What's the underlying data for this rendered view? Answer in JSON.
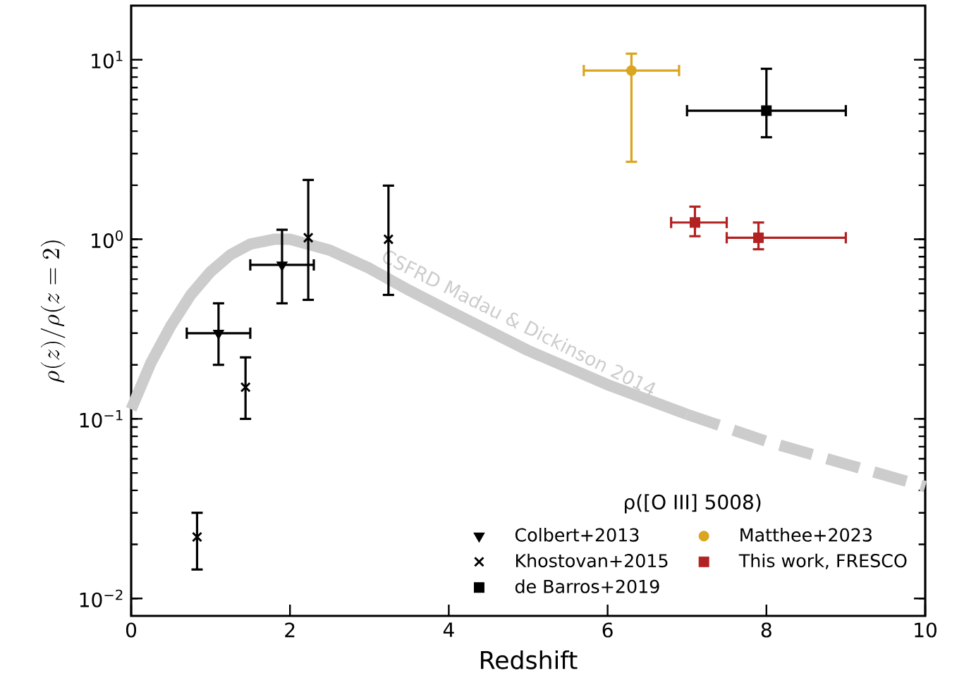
{
  "chart_data": {
    "type": "scatter",
    "xlabel": "Redshift",
    "ylabel": "\\rho(z)/\\rho(z=2)",
    "xlim": [
      0,
      10
    ],
    "ylim": [
      0.008,
      20
    ],
    "log": "y",
    "xticks": [
      0,
      2,
      4,
      6,
      8,
      10
    ],
    "yticks": [
      {
        "value": 0.01,
        "label": "10$^{−2}$"
      },
      {
        "value": 0.1,
        "label": "10$^{−1}$"
      },
      {
        "value": 1,
        "label": "10$^{0}$"
      },
      {
        "value": 10,
        "label": "10$^{1}$"
      }
    ],
    "legend": "bottom right",
    "legend_title": "ρ([O III] 5008)",
    "series": [
      {
        "name": "Colbert+2013",
        "marker": "triangle",
        "color": "#000000",
        "x": [
          1.1,
          1.9
        ],
        "values": [
          0.3,
          0.72
        ],
        "errors": [
          [
            0.2,
            0.44
          ],
          [
            0.44,
            1.13
          ]
        ],
        "xerrors": [
          [
            0.7,
            1.5
          ],
          [
            1.5,
            2.3
          ]
        ]
      },
      {
        "name": "Khostovan+2015",
        "marker": "cross",
        "color": "#000000",
        "x": [
          0.83,
          1.44,
          2.23,
          3.24
        ],
        "values": [
          0.022,
          0.15,
          1.02,
          1.0
        ],
        "errors": [
          [
            0.0145,
            0.03
          ],
          [
            0.1,
            0.22
          ],
          [
            0.46,
            2.14
          ],
          [
            0.49,
            1.99
          ]
        ]
      },
      {
        "name": "de Barros+2019",
        "marker": "square",
        "color": "#000000",
        "x": [
          8.0
        ],
        "values": [
          5.2
        ],
        "errors": [
          [
            3.7,
            8.9
          ]
        ],
        "xerrors": [
          [
            7.0,
            9.0
          ]
        ]
      },
      {
        "name": "Matthee+2023",
        "marker": "circle",
        "color": "#DAA520",
        "x": [
          6.3
        ],
        "values": [
          8.7
        ],
        "errors": [
          [
            2.7,
            10.8
          ]
        ],
        "xerrors": [
          [
            5.7,
            6.9
          ]
        ]
      },
      {
        "name": "This work, FRESCO",
        "marker": "square",
        "color": "#B22222",
        "x": [
          7.1,
          7.9
        ],
        "values": [
          1.24,
          1.02
        ],
        "errors": [
          [
            1.04,
            1.52
          ],
          [
            0.88,
            1.24
          ]
        ],
        "xerrors": [
          [
            6.8,
            7.5
          ],
          [
            7.5,
            9.0
          ]
        ]
      },
      {
        "name": "CSFRD Madau & Dickinson 2014",
        "type": "line",
        "line_style": "solid",
        "color": "#CCCCCC",
        "x": [
          0,
          0.25,
          0.5,
          0.75,
          1,
          1.25,
          1.5,
          1.8,
          2,
          2.5,
          3,
          3.5,
          4,
          5,
          6,
          7
        ],
        "values": [
          0.113,
          0.206,
          0.33,
          0.49,
          0.66,
          0.82,
          0.94,
          1.0,
          1.0,
          0.87,
          0.69,
          0.52,
          0.4,
          0.24,
          0.155,
          0.106
        ]
      },
      {
        "type": "line",
        "line_style": "dashed",
        "color": "#CCCCCC",
        "x": [
          7,
          8,
          9,
          10
        ],
        "values": [
          0.106,
          0.075,
          0.056,
          0.042
        ]
      }
    ]
  }
}
